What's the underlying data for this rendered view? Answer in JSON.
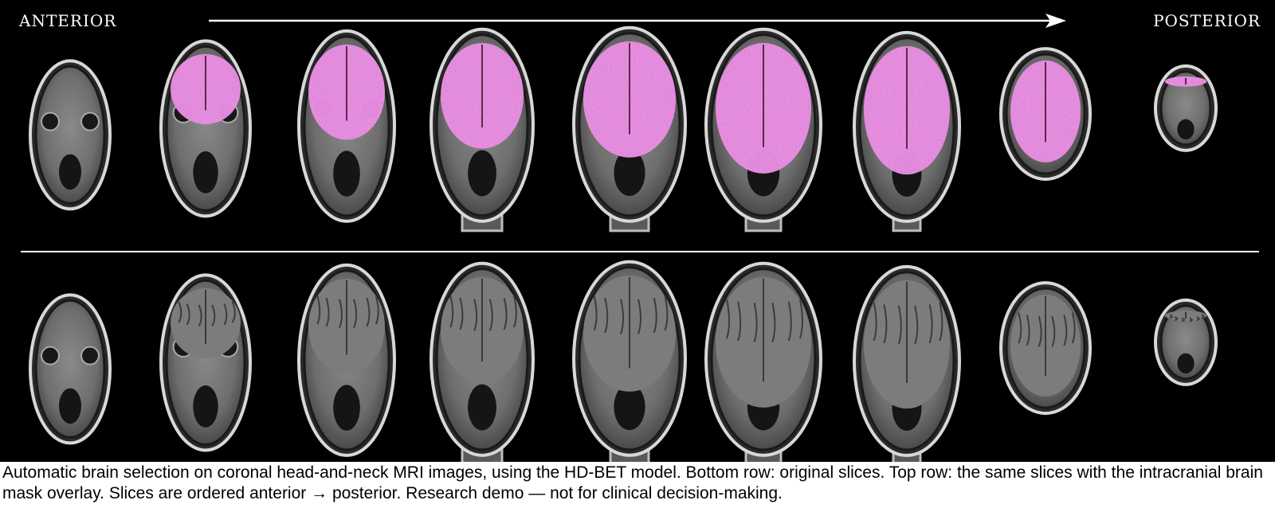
{
  "figure": {
    "label_left": "ANTERIOR",
    "label_right": "POSTERIOR",
    "colors": {
      "background": "#000000",
      "mask_overlay": "#b4508c",
      "arrow": "#ffffff"
    },
    "slice_count": 9,
    "rows": [
      {
        "id": "overlay",
        "mask": true
      },
      {
        "id": "original",
        "mask": false
      }
    ]
  },
  "caption": "Automatic brain selection on coronal head-and-neck MRI images, using the HD-BET model. Bottom row: original slices. Top row: the same slices with the intracranial brain mask overlay. Slices are ordered anterior → posterior. Research demo — not for clinical decision-making."
}
